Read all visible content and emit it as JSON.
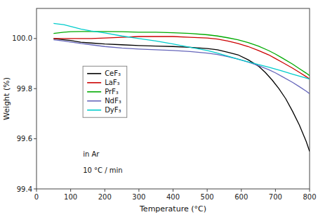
{
  "chart_data": {
    "type": "line",
    "x_label": "Temperature (°C)",
    "y_label": "Weight (%)",
    "xlim": [
      0,
      800
    ],
    "ylim": [
      99.4,
      100.12
    ],
    "xticks": [
      0,
      100,
      200,
      300,
      400,
      500,
      600,
      700,
      800
    ],
    "yticks": [
      99.4,
      99.6,
      99.8,
      {
        "value": 100.0,
        "label": "100.0"
      }
    ],
    "legend": "center left",
    "annotations": [
      "in Ar",
      "10 °C / min"
    ],
    "series": [
      {
        "name": "CeF₃",
        "color": "#000000",
        "x": [
          50,
          80,
          100,
          130,
          160,
          200,
          250,
          300,
          350,
          400,
          450,
          500,
          530,
          560,
          590,
          620,
          650,
          670,
          690,
          710,
          730,
          750,
          770,
          790,
          800
        ],
        "values": [
          100.0,
          99.995,
          99.992,
          99.985,
          99.982,
          99.978,
          99.975,
          99.972,
          99.97,
          99.968,
          99.965,
          99.96,
          99.955,
          99.945,
          99.935,
          99.915,
          99.89,
          99.865,
          99.835,
          99.8,
          99.76,
          99.71,
          99.655,
          99.59,
          99.55
        ]
      },
      {
        "name": "LaF₃",
        "color": "#cc0000",
        "x": [
          50,
          80,
          100,
          130,
          160,
          200,
          250,
          300,
          350,
          400,
          450,
          500,
          530,
          560,
          590,
          620,
          650,
          680,
          700,
          720,
          750,
          770,
          790,
          800
        ],
        "values": [
          100.0,
          100.0,
          100.0,
          100.0,
          100.0,
          100.002,
          100.005,
          100.008,
          100.008,
          100.008,
          100.005,
          100.002,
          99.998,
          99.99,
          99.98,
          99.968,
          99.952,
          99.935,
          99.92,
          99.905,
          99.882,
          99.865,
          99.848,
          99.838
        ]
      },
      {
        "name": "PrF₃",
        "color": "#00aa00",
        "x": [
          50,
          80,
          100,
          130,
          160,
          200,
          250,
          300,
          350,
          400,
          450,
          500,
          530,
          560,
          590,
          620,
          650,
          680,
          700,
          720,
          750,
          770,
          790,
          800
        ],
        "values": [
          100.02,
          100.025,
          100.027,
          100.028,
          100.028,
          100.028,
          100.027,
          100.025,
          100.025,
          100.023,
          100.02,
          100.015,
          100.01,
          100.003,
          99.995,
          99.984,
          99.97,
          99.952,
          99.938,
          99.922,
          99.898,
          99.88,
          99.862,
          99.852
        ]
      },
      {
        "name": "NdF₃",
        "color": "#6666bb",
        "x": [
          50,
          80,
          100,
          130,
          160,
          200,
          250,
          300,
          350,
          400,
          450,
          500,
          530,
          560,
          590,
          620,
          650,
          680,
          700,
          720,
          750,
          770,
          790,
          800
        ],
        "values": [
          99.995,
          99.99,
          99.986,
          99.98,
          99.975,
          99.968,
          99.962,
          99.958,
          99.955,
          99.952,
          99.948,
          99.942,
          99.936,
          99.928,
          99.918,
          99.906,
          99.892,
          99.876,
          99.863,
          99.848,
          99.825,
          99.808,
          99.79,
          99.78
        ]
      },
      {
        "name": "DyF₃",
        "color": "#00cccc",
        "x": [
          50,
          80,
          100,
          130,
          160,
          200,
          250,
          300,
          350,
          400,
          450,
          500,
          530,
          560,
          590,
          620,
          650,
          680,
          700,
          720,
          750,
          770,
          790,
          800
        ],
        "values": [
          100.06,
          100.055,
          100.048,
          100.038,
          100.03,
          100.022,
          100.01,
          100.0,
          99.99,
          99.978,
          99.965,
          99.952,
          99.942,
          99.93,
          99.918,
          99.907,
          99.896,
          99.886,
          99.878,
          99.87,
          99.858,
          99.85,
          99.842,
          99.838
        ]
      }
    ]
  }
}
